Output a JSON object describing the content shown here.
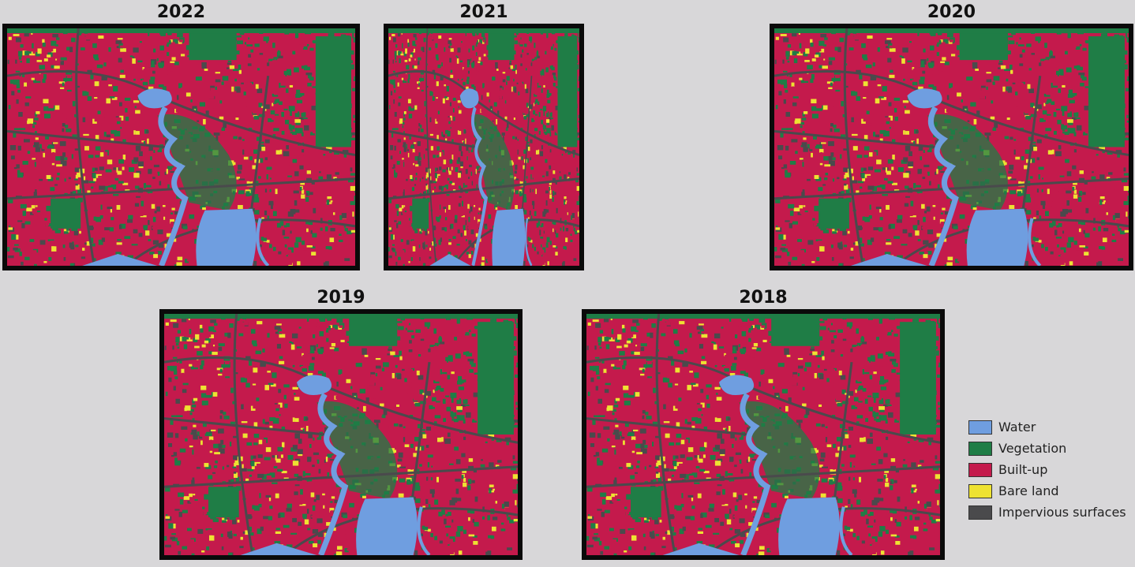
{
  "panels": [
    {
      "title": "2022"
    },
    {
      "title": "2021"
    },
    {
      "title": "2020"
    },
    {
      "title": "2019"
    },
    {
      "title": "2018"
    }
  ],
  "legend": {
    "items": [
      {
        "label": "Water",
        "color": "#6f9ee0"
      },
      {
        "label": "Vegetation",
        "color": "#1f7d46"
      },
      {
        "label": "Built-up",
        "color": "#c41a4c"
      },
      {
        "label": "Bare land",
        "color": "#eee232"
      },
      {
        "label": "Impervious surfaces",
        "color": "#4a4a4c"
      }
    ]
  }
}
